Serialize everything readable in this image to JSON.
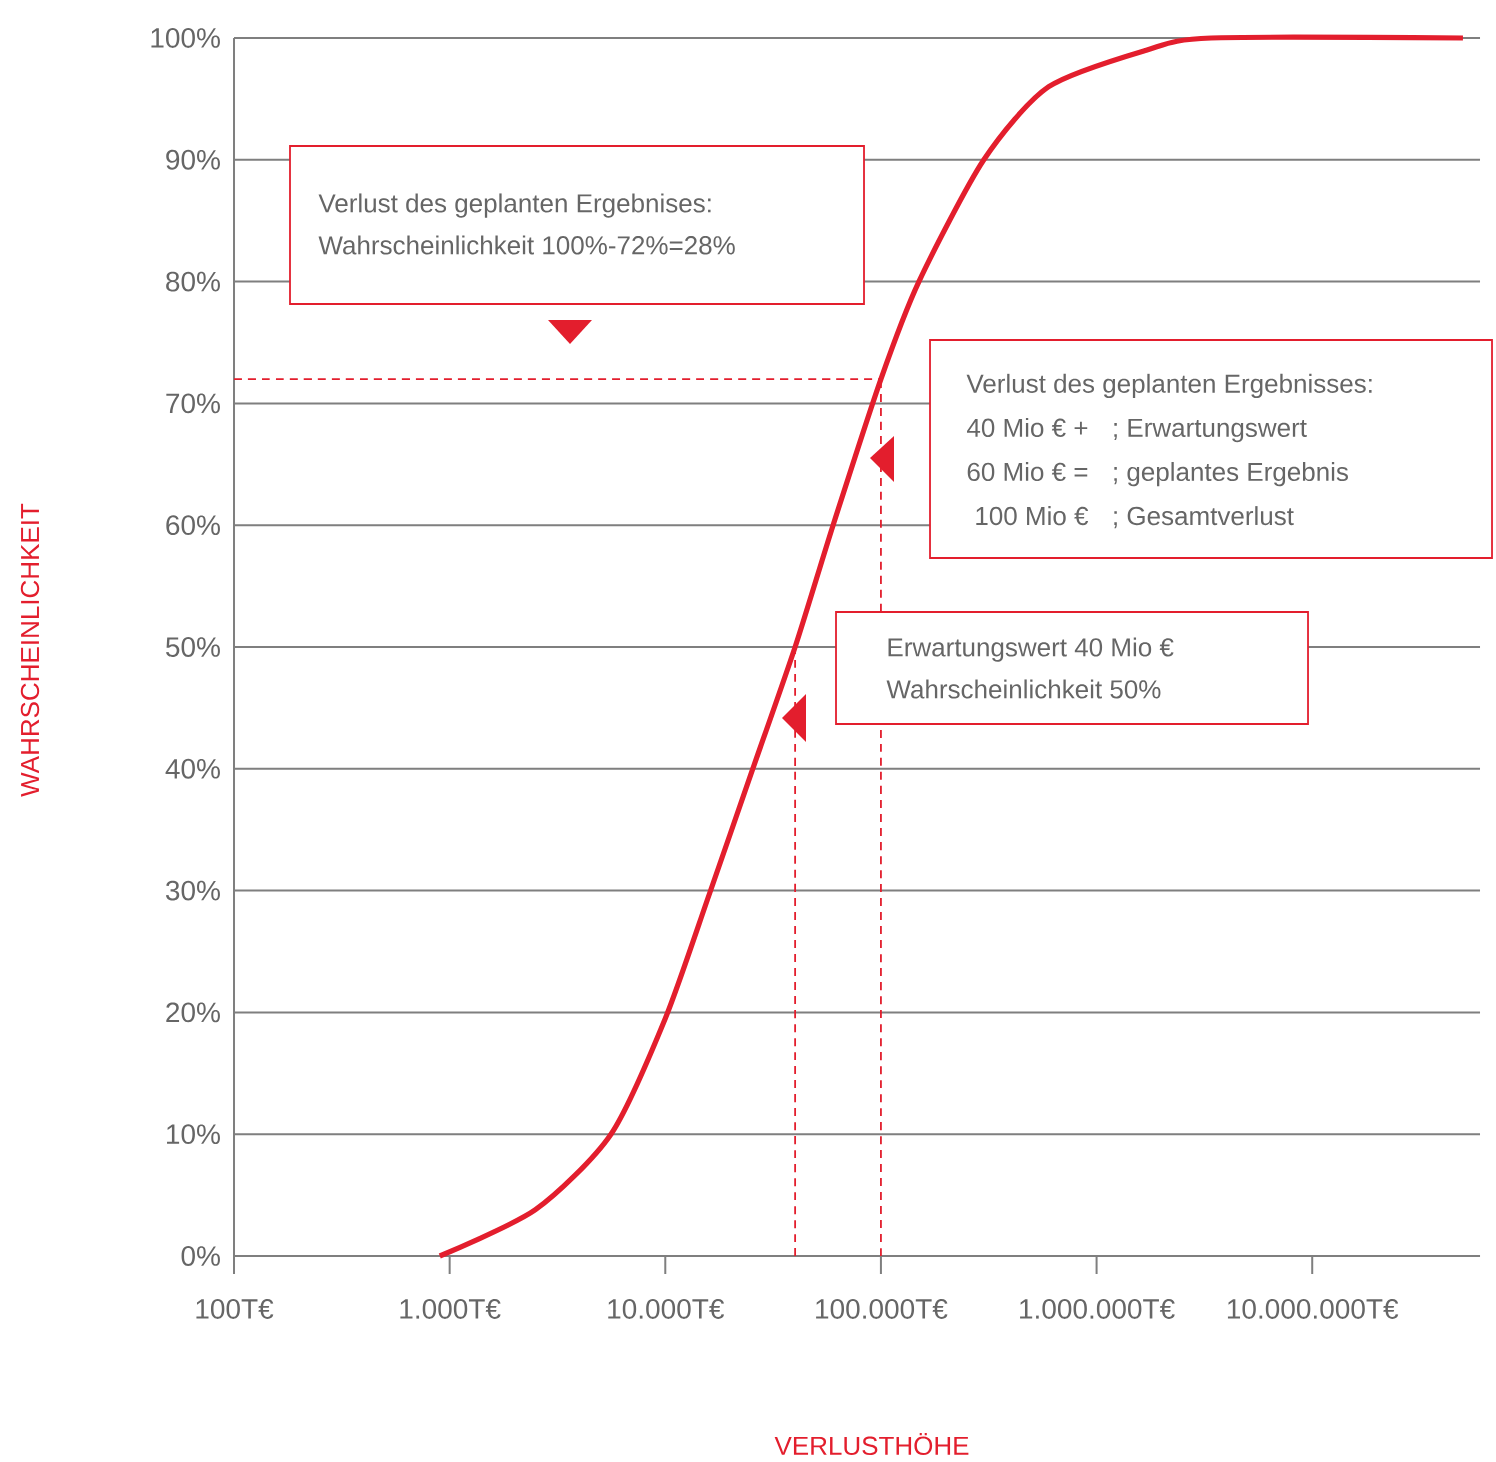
{
  "chart_data": {
    "type": "line",
    "xlabel": "VERLUSTHÖHE",
    "ylabel": "WAHRSCHEINLICHKEIT",
    "log": "x",
    "grid": "y",
    "xlim": [
      100,
      60000000
    ],
    "ylim": [
      0,
      100
    ],
    "xticks": [
      {
        "value": 100,
        "label": "100T€"
      },
      {
        "value": 1000,
        "label": "1.000T€"
      },
      {
        "value": 10000,
        "label": "10.000T€"
      },
      {
        "value": 100000,
        "label": "100.000T€"
      },
      {
        "value": 1000000,
        "label": "1.000.000T€"
      },
      {
        "value": 10000000,
        "label": "10.000.000T€"
      }
    ],
    "yticks": [
      {
        "value": 0,
        "label": "0%"
      },
      {
        "value": 10,
        "label": "10%"
      },
      {
        "value": 20,
        "label": "20%"
      },
      {
        "value": 30,
        "label": "30%"
      },
      {
        "value": 40,
        "label": "40%"
      },
      {
        "value": 50,
        "label": "50%"
      },
      {
        "value": 60,
        "label": "60%"
      },
      {
        "value": 70,
        "label": "70%"
      },
      {
        "value": 80,
        "label": "80%"
      },
      {
        "value": 90,
        "label": "90%"
      },
      {
        "value": 100,
        "label": "100%"
      }
    ],
    "series": [
      {
        "color": "#e31e2d",
        "line_style": "solid",
        "x": [
          900,
          2500,
          5600,
          10000,
          16000,
          25000,
          40000,
          60000,
          100000,
          150000,
          300000,
          600000,
          1700000,
          3400000,
          50000000
        ],
        "values": [
          0,
          3.8,
          10,
          19.5,
          29.7,
          39.6,
          50,
          60,
          72,
          80,
          90,
          96,
          99,
          100,
          100
        ]
      },
      {
        "color": "#e31e2d",
        "line_style": "dashed",
        "x": [
          40000,
          40000
        ],
        "values": [
          0,
          50
        ]
      },
      {
        "color": "#e31e2d",
        "line_style": "dashed",
        "x": [
          100000,
          100000
        ],
        "values": [
          0,
          72
        ]
      },
      {
        "color": "#e31e2d",
        "line_style": "dashed",
        "x": [
          100,
          100000
        ],
        "values": [
          72,
          72
        ]
      }
    ],
    "annotations": [
      "Verlust des geplanten Ergebnises:",
      "Wahrscheinlichkeit 100%-72%=28%",
      "Verlust des geplanten Ergebnisses:",
      "40 Mio € +",
      "; Erwartungswert",
      "60 Mio € =",
      "; geplantes Ergebnis",
      "100 Mio €",
      "; Gesamtverlust",
      "Erwartungswert 40 Mio €",
      "Wahrscheinlichkeit 50%"
    ]
  }
}
